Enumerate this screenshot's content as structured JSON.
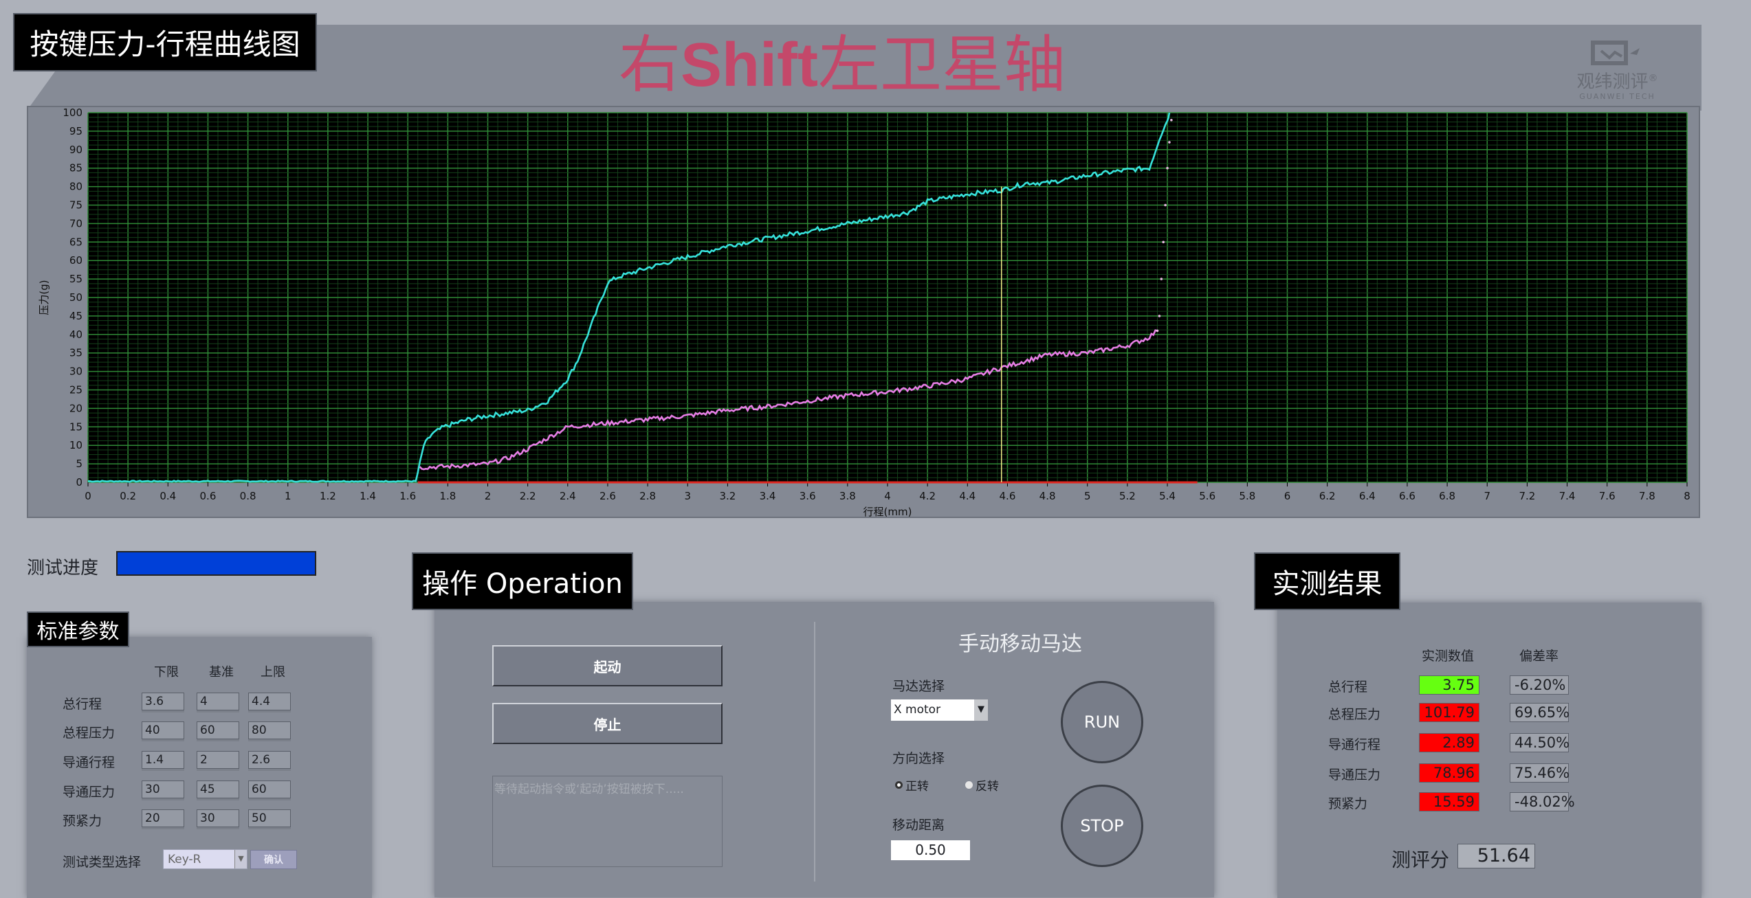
{
  "header": {
    "panel_title": "按键压力-行程曲线图",
    "product_title_prefix": "右",
    "product_title_bold": "Shift",
    "product_title_suffix": "左卫星轴",
    "title_color": "#c4486a",
    "logo": {
      "cn": "观纬测评",
      "en": "GUANWEI TECH",
      "reg": "®"
    }
  },
  "chart_data": {
    "type": "line",
    "xlabel": "行程(mm)",
    "ylabel": "压力(g)",
    "xlim": [
      0,
      8
    ],
    "ylim": [
      0,
      100
    ],
    "x_tick_step": 0.2,
    "y_tick_step": 5,
    "grid": true,
    "background": "#000000",
    "grid_color": "#1f6b2a",
    "cursor_x": 4.57,
    "cursor_color": "#f3f08a",
    "series": [
      {
        "color": "#37e3dc",
        "points": [
          [
            0,
            0.3
          ],
          [
            1.64,
            0.3
          ],
          [
            1.66,
            5
          ],
          [
            1.68,
            10
          ],
          [
            1.72,
            13
          ],
          [
            1.78,
            15
          ],
          [
            1.9,
            17
          ],
          [
            2.0,
            18
          ],
          [
            2.2,
            19.5
          ],
          [
            2.3,
            22
          ],
          [
            2.4,
            28
          ],
          [
            2.45,
            33
          ],
          [
            2.5,
            40
          ],
          [
            2.55,
            47
          ],
          [
            2.6,
            54
          ],
          [
            2.65,
            55.5
          ],
          [
            2.8,
            58
          ],
          [
            3.0,
            61
          ],
          [
            3.2,
            64
          ],
          [
            3.4,
            66
          ],
          [
            3.6,
            68
          ],
          [
            3.8,
            70
          ],
          [
            4.0,
            72
          ],
          [
            4.1,
            73
          ],
          [
            4.2,
            76
          ],
          [
            4.4,
            78
          ],
          [
            4.57,
            79
          ],
          [
            4.7,
            81
          ],
          [
            4.8,
            81
          ],
          [
            5.0,
            83
          ],
          [
            5.2,
            84.5
          ],
          [
            5.31,
            85
          ],
          [
            5.33,
            88
          ],
          [
            5.36,
            93
          ],
          [
            5.4,
            98
          ],
          [
            5.41,
            100
          ]
        ]
      },
      {
        "color": "#e77fe6",
        "points": [
          [
            1.66,
            4
          ],
          [
            1.8,
            4.3
          ],
          [
            2.0,
            5
          ],
          [
            2.1,
            6.5
          ],
          [
            2.2,
            9
          ],
          [
            2.3,
            12
          ],
          [
            2.4,
            15
          ],
          [
            2.5,
            15.5
          ],
          [
            2.6,
            16
          ],
          [
            2.8,
            17
          ],
          [
            3.0,
            18
          ],
          [
            3.2,
            19.5
          ],
          [
            3.4,
            20.5
          ],
          [
            3.6,
            22
          ],
          [
            3.8,
            23.5
          ],
          [
            4.0,
            24.5
          ],
          [
            4.2,
            26
          ],
          [
            4.4,
            28
          ],
          [
            4.57,
            31
          ],
          [
            4.7,
            33
          ],
          [
            4.8,
            34.5
          ],
          [
            5.0,
            35
          ],
          [
            5.2,
            37
          ],
          [
            5.3,
            39
          ],
          [
            5.35,
            41
          ]
        ]
      },
      {
        "color": "#e8b9e2",
        "style": "dotted",
        "points": [
          [
            5.35,
            41
          ],
          [
            5.36,
            45
          ],
          [
            5.37,
            55
          ],
          [
            5.38,
            65
          ],
          [
            5.39,
            75
          ],
          [
            5.4,
            85
          ],
          [
            5.41,
            92
          ],
          [
            5.42,
            98
          ]
        ]
      },
      {
        "color": "#e0261f",
        "points": [
          [
            1.65,
            0
          ],
          [
            5.55,
            0
          ]
        ]
      }
    ]
  },
  "progress": {
    "label": "测试进度",
    "value": 1.0,
    "color": "#0040d8"
  },
  "params": {
    "title": "标准参数",
    "columns": [
      "下限",
      "基准",
      "上限"
    ],
    "rows": [
      {
        "label": "总行程",
        "values": [
          "3.6",
          "4",
          "4.4"
        ]
      },
      {
        "label": "总程压力",
        "values": [
          "40",
          "60",
          "80"
        ]
      },
      {
        "label": "导通行程",
        "values": [
          "1.4",
          "2",
          "2.6"
        ]
      },
      {
        "label": "导通压力",
        "values": [
          "30",
          "45",
          "60"
        ]
      },
      {
        "label": "预紧力",
        "values": [
          "20",
          "30",
          "50"
        ]
      }
    ],
    "test_type_label": "测试类型选择",
    "test_type_value": "Key-R",
    "confirm_label": "确认"
  },
  "operation": {
    "title": "操作 Operation",
    "start_label": "起动",
    "stop_label": "停止",
    "status_text": "等待起动指令或‘起动’按钮被按下.....",
    "manual": {
      "title": "手动移动马达",
      "motor_label": "马达选择",
      "motor_value": "X motor",
      "direction_label": "方向选择",
      "forward": "正转",
      "reverse": "反转",
      "selected": "forward",
      "distance_label": "移动距离",
      "distance_value": "0.50",
      "run_label": "RUN",
      "stop_label": "STOP"
    }
  },
  "results": {
    "title": "实测结果",
    "columns": [
      "实测数值",
      "偏差率"
    ],
    "rows": [
      {
        "label": "总行程",
        "value": "3.75",
        "deviation": "-6.20%",
        "status": "pass",
        "color": "#66ff11"
      },
      {
        "label": "总程压力",
        "value": "101.79",
        "deviation": "69.65%",
        "status": "fail",
        "color": "#ff0000"
      },
      {
        "label": "导通行程",
        "value": "2.89",
        "deviation": "44.50%",
        "status": "fail",
        "color": "#ff0000"
      },
      {
        "label": "导通压力",
        "value": "78.96",
        "deviation": "75.46%",
        "status": "fail",
        "color": "#ff0000"
      },
      {
        "label": "预紧力",
        "value": "15.59",
        "deviation": "-48.02%",
        "status": "fail",
        "color": "#ff0000"
      }
    ],
    "score_label": "测评分",
    "score_value": "51.64"
  }
}
